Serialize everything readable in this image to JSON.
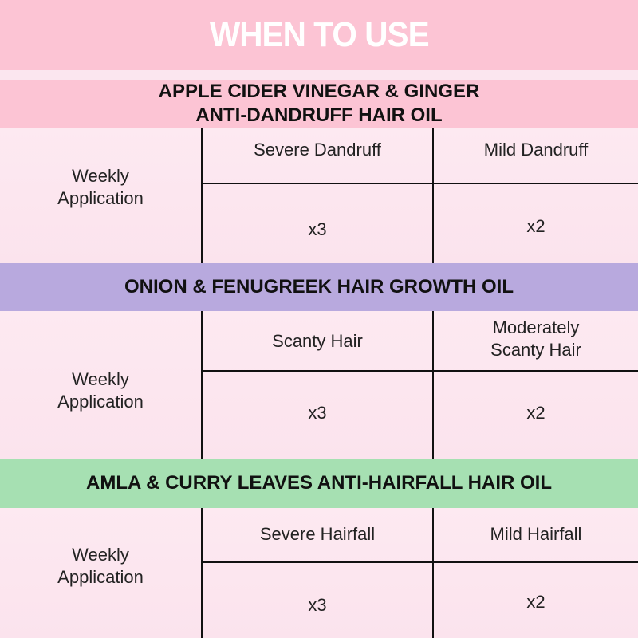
{
  "title": "WHEN TO USE",
  "colors": {
    "pink": "#fcc4d4",
    "purple": "#b8a9de",
    "green": "#a6e0b2"
  },
  "sections": [
    {
      "name_line1": "APPLE CIDER VINEGAR & GINGER",
      "name_line2": "ANTI-DANDRUFF HAIR OIL",
      "row_label": "Weekly Application",
      "columns": [
        "Severe Dandruff",
        "Mild Dandruff"
      ],
      "values": [
        "x3",
        "x2"
      ]
    },
    {
      "name_line1": "ONION & FENUGREEK HAIR GROWTH OIL",
      "row_label": "Weekly Application",
      "columns": [
        "Scanty Hair",
        "Moderately Scanty Hair"
      ],
      "values": [
        "x3",
        "x2"
      ]
    },
    {
      "name_line1": "AMLA & CURRY LEAVES ANTI-HAIRFALL HAIR OIL",
      "row_label": "Weekly Application",
      "columns": [
        "Severe Hairfall",
        "Mild Hairfall"
      ],
      "values": [
        "x3",
        "x2"
      ]
    }
  ]
}
